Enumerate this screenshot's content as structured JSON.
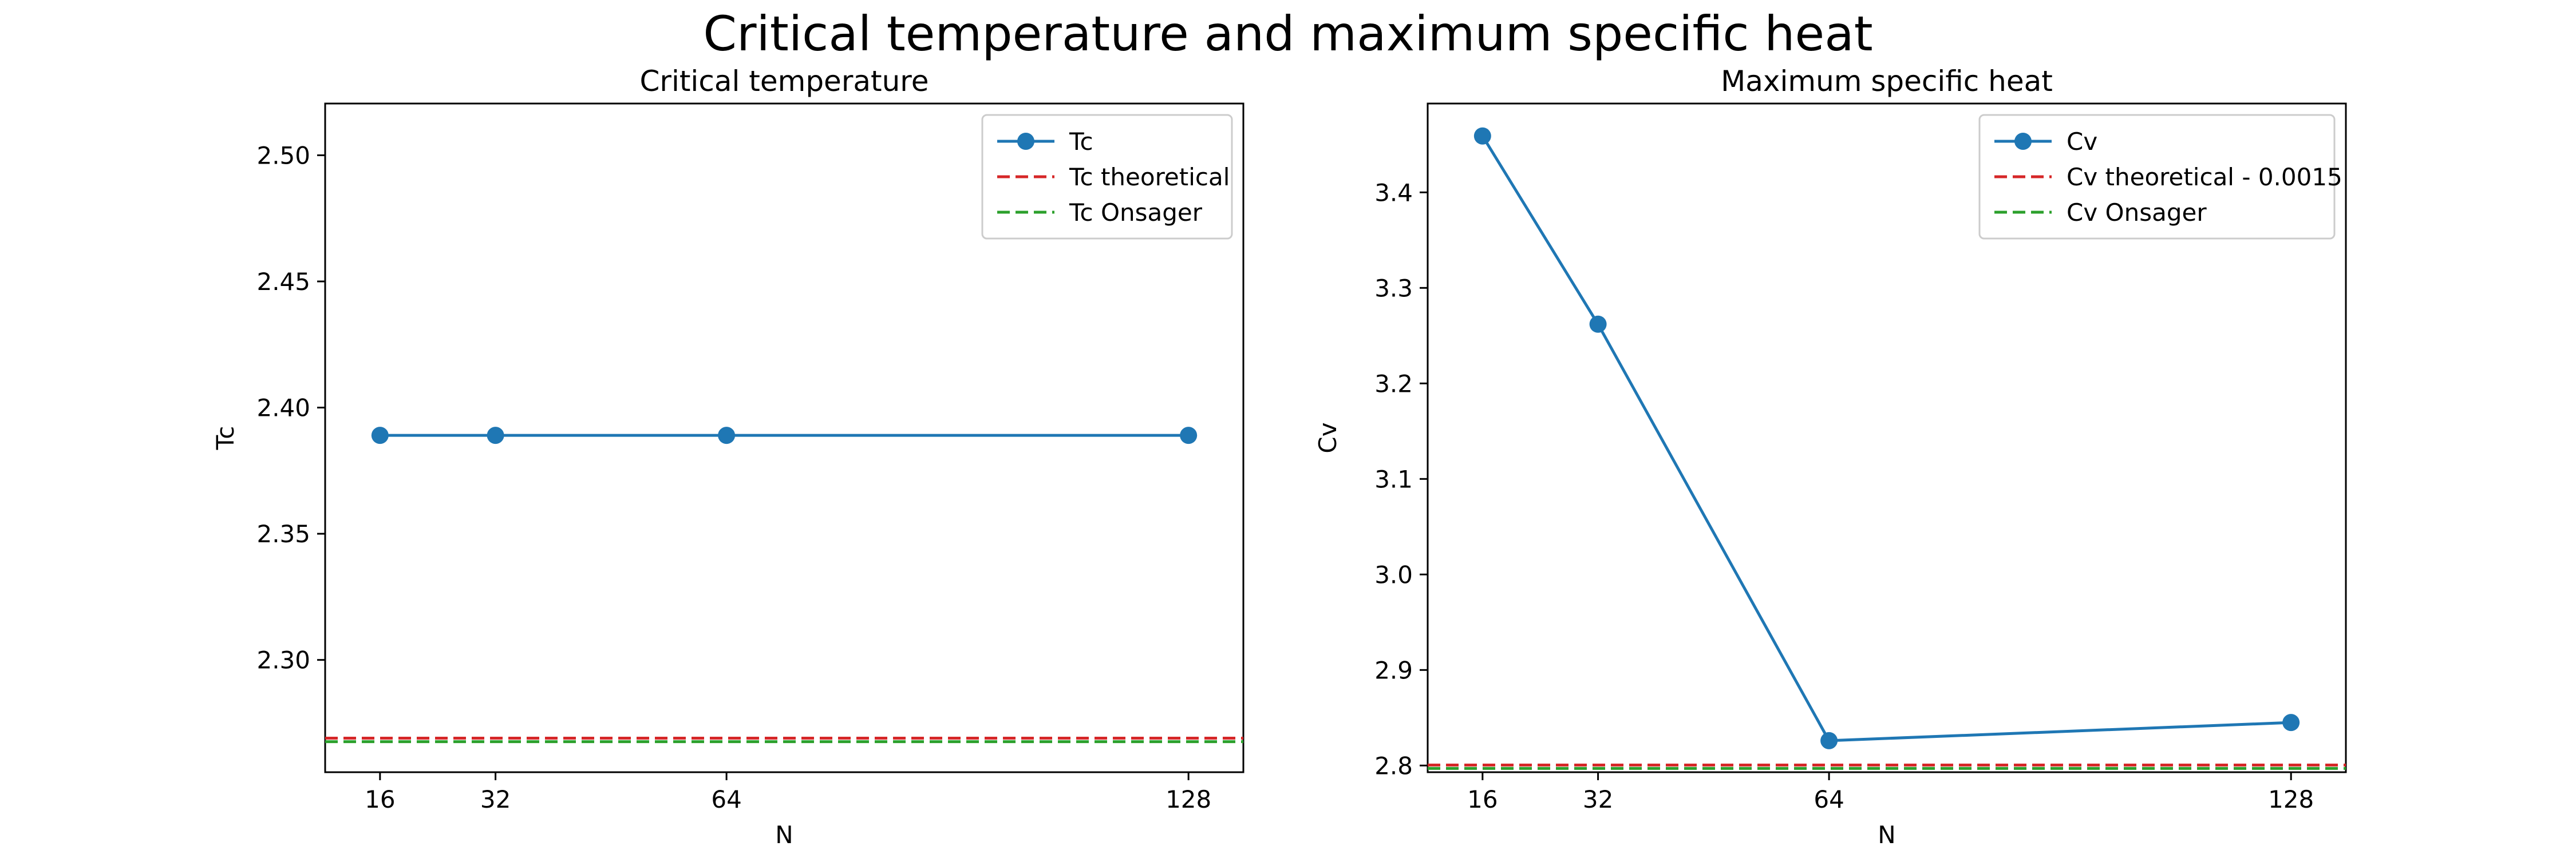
{
  "figure": {
    "suptitle": "Critical temperature and maximum specific heat"
  },
  "chart_data": [
    {
      "type": "line",
      "title": "Critical temperature",
      "xlabel": "N",
      "ylabel": "Tc",
      "xlim": [
        8.4,
        135.6
      ],
      "ylim": [
        2.2555,
        2.5205
      ],
      "xticks": [
        16,
        32,
        64,
        128
      ],
      "xtick_labels": [
        "16",
        "32",
        "64",
        "128"
      ],
      "yticks": [
        2.3,
        2.35,
        2.4,
        2.45,
        2.5
      ],
      "ytick_labels": [
        "2.30",
        "2.35",
        "2.40",
        "2.45",
        "2.50"
      ],
      "grid": false,
      "legend_position": "top-right",
      "series": [
        {
          "name": "Tc",
          "style": "line-marker",
          "color": "#1f77b4",
          "x": [
            16,
            32,
            64,
            128
          ],
          "values": [
            2.389,
            2.389,
            2.389,
            2.389
          ]
        },
        {
          "name": "Tc theoretical",
          "style": "hline-dashed",
          "color": "#d62728",
          "y": 2.269
        },
        {
          "name": "Tc Onsager",
          "style": "hline-dashed",
          "color": "#2ca02c",
          "y": 2.2676
        }
      ]
    },
    {
      "type": "line",
      "title": "Maximum specific heat",
      "xlabel": "N",
      "ylabel": "Cv",
      "xlim": [
        8.4,
        135.6
      ],
      "ylim": [
        2.793,
        3.493
      ],
      "xticks": [
        16,
        32,
        64,
        128
      ],
      "xtick_labels": [
        "16",
        "32",
        "64",
        "128"
      ],
      "yticks": [
        2.8,
        2.9,
        3.0,
        3.1,
        3.2,
        3.3,
        3.4
      ],
      "ytick_labels": [
        "2.8",
        "2.9",
        "3.0",
        "3.1",
        "3.2",
        "3.3",
        "3.4"
      ],
      "grid": false,
      "legend_position": "top-right",
      "series": [
        {
          "name": "Cv",
          "style": "line-marker",
          "color": "#1f77b4",
          "x": [
            16,
            32,
            64,
            128
          ],
          "values": [
            3.459,
            3.262,
            2.826,
            2.845
          ]
        },
        {
          "name": "Cv theoretical - 0.0015",
          "style": "hline-dashed",
          "color": "#d62728",
          "y": 2.8005
        },
        {
          "name": "Cv Onsager",
          "style": "hline-dashed",
          "color": "#2ca02c",
          "y": 2.797
        }
      ]
    }
  ]
}
